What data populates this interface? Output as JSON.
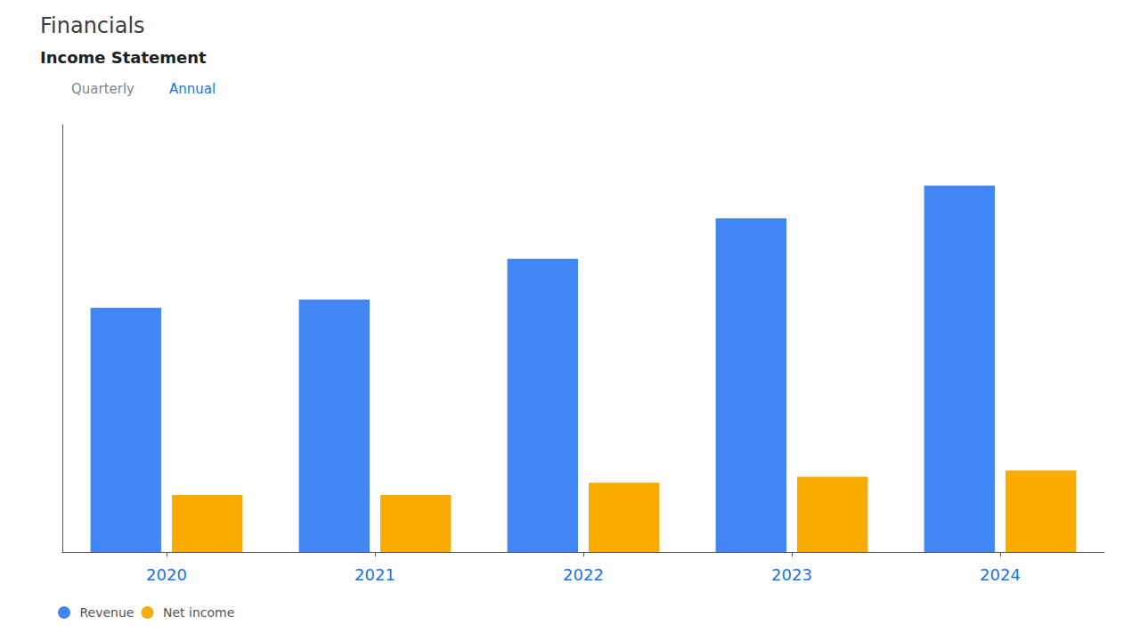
{
  "chart_data": {
    "type": "bar",
    "title": "Financials",
    "subtitle": "Income Statement",
    "annotations": [
      "Quarterly",
      "Annual"
    ],
    "categories": [
      "2020",
      "2021",
      "2022",
      "2023",
      "2024"
    ],
    "series": [
      {
        "name": "Revenue",
        "color": "#4285F4",
        "values": [
          6.0,
          6.2,
          7.2,
          8.2,
          9.0
        ]
      },
      {
        "name": "Net income",
        "color": "#F9AB00",
        "values": [
          1.4,
          1.4,
          1.7,
          1.85,
          2.0
        ]
      }
    ],
    "ylim": [
      0,
      10.5
    ],
    "yticks": [],
    "grid": false,
    "legend": "lower left",
    "tick_labels": "x"
  }
}
